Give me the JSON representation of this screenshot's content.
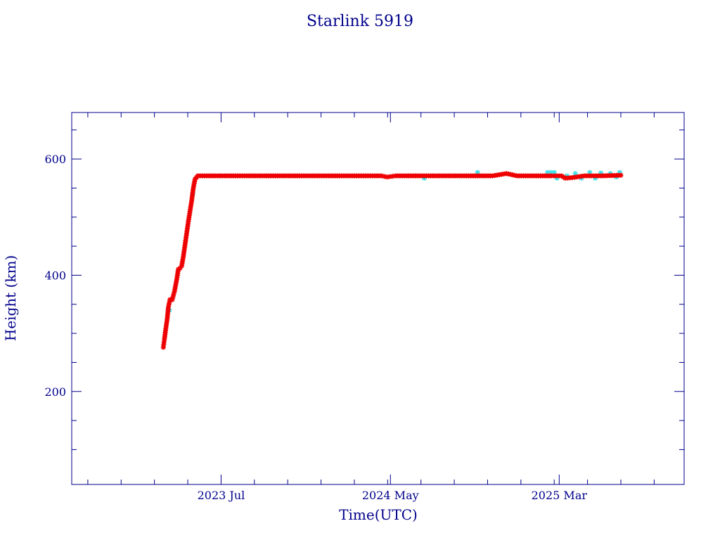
{
  "chart_data": {
    "type": "scatter",
    "title": "Starlink 5919",
    "xlabel": "Time(UTC)",
    "ylabel": "Height (km)",
    "xlim": [
      "2022-10-05",
      "2025-10-12"
    ],
    "ylim": [
      40,
      680
    ],
    "x_ticks": [
      {
        "date": "2023-07-01",
        "label": "2023 Jul"
      },
      {
        "date": "2024-05-01",
        "label": "2024 May"
      },
      {
        "date": "2025-03-01",
        "label": "2025 Mar"
      }
    ],
    "y_ticks": [
      200,
      400,
      600
    ],
    "grid": false,
    "colors": {
      "primary": "#ee0000",
      "secondary": "#40e0e8",
      "axis": "#00008b"
    },
    "series": [
      {
        "color": "#ee0000",
        "marker": "asterisk",
        "points": [
          [
            "2023-03-19",
            276
          ],
          [
            "2023-03-21",
            290
          ],
          [
            "2023-03-23",
            305
          ],
          [
            "2023-03-26",
            325
          ],
          [
            "2023-03-28",
            345
          ],
          [
            "2023-03-31",
            358
          ],
          [
            "2023-04-04",
            358
          ],
          [
            "2023-04-08",
            372
          ],
          [
            "2023-04-12",
            392
          ],
          [
            "2023-04-15",
            410
          ],
          [
            "2023-04-18",
            412
          ],
          [
            "2023-04-21",
            416
          ],
          [
            "2023-04-24",
            432
          ],
          [
            "2023-04-27",
            452
          ],
          [
            "2023-04-30",
            472
          ],
          [
            "2023-05-03",
            492
          ],
          [
            "2023-05-06",
            510
          ],
          [
            "2023-05-09",
            528
          ],
          [
            "2023-05-12",
            550
          ],
          [
            "2023-05-15",
            565
          ],
          [
            "2023-05-20",
            571
          ],
          [
            "2023-06-01",
            571
          ],
          [
            "2023-07-15",
            571
          ],
          [
            "2023-09-01",
            571
          ],
          [
            "2023-10-15",
            571
          ],
          [
            "2023-12-01",
            571
          ],
          [
            "2024-01-15",
            571
          ],
          [
            "2024-03-01",
            571
          ],
          [
            "2024-04-15",
            571
          ],
          [
            "2024-04-25",
            569
          ],
          [
            "2024-05-10",
            571
          ],
          [
            "2024-06-15",
            571
          ],
          [
            "2024-08-01",
            571
          ],
          [
            "2024-09-15",
            571
          ],
          [
            "2024-11-01",
            571
          ],
          [
            "2024-11-26",
            575
          ],
          [
            "2024-12-15",
            571
          ],
          [
            "2025-01-15",
            571
          ],
          [
            "2025-02-15",
            571
          ],
          [
            "2025-03-05",
            571
          ],
          [
            "2025-03-12",
            567
          ],
          [
            "2025-03-25",
            568
          ],
          [
            "2025-04-15",
            571
          ],
          [
            "2025-05-15",
            571
          ],
          [
            "2025-06-20",
            572
          ]
        ]
      },
      {
        "color": "#40e0e8",
        "marker": "asterisk",
        "points": [
          [
            "2023-03-30",
            340
          ],
          [
            "2023-05-11",
            540
          ],
          [
            "2024-07-01",
            567
          ],
          [
            "2024-10-05",
            577
          ],
          [
            "2025-02-08",
            577
          ],
          [
            "2025-02-14",
            577
          ],
          [
            "2025-02-20",
            577
          ],
          [
            "2025-02-25",
            567
          ],
          [
            "2025-03-15",
            571
          ],
          [
            "2025-03-30",
            575
          ],
          [
            "2025-04-10",
            567
          ],
          [
            "2025-04-25",
            577
          ],
          [
            "2025-05-05",
            567
          ],
          [
            "2025-05-15",
            576
          ],
          [
            "2025-06-01",
            575
          ],
          [
            "2025-06-12",
            569
          ],
          [
            "2025-06-18",
            577
          ]
        ]
      }
    ]
  }
}
